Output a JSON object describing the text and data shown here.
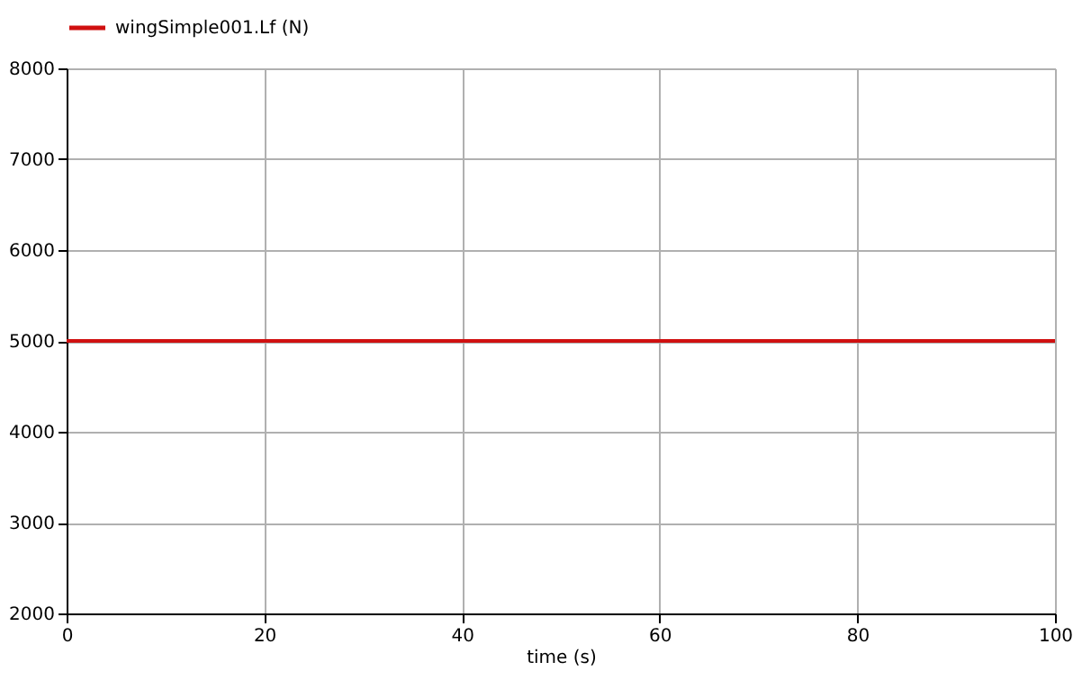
{
  "chart_data": {
    "type": "line",
    "xlabel": "time (s)",
    "x": [
      0,
      100
    ],
    "series": [
      {
        "name": "wingSimple001.Lf (N)",
        "color": "#d01010",
        "values": [
          5000,
          5000
        ]
      }
    ],
    "xlim": [
      0,
      100
    ],
    "xticks": [
      0,
      20,
      40,
      60,
      80,
      100
    ],
    "ylim": [
      2000,
      8000
    ],
    "yticks": [
      2000,
      3000,
      4000,
      5000,
      6000,
      7000,
      8000
    ],
    "grid": true,
    "legend": "top left",
    "marker": "none",
    "line_style": "solid"
  }
}
